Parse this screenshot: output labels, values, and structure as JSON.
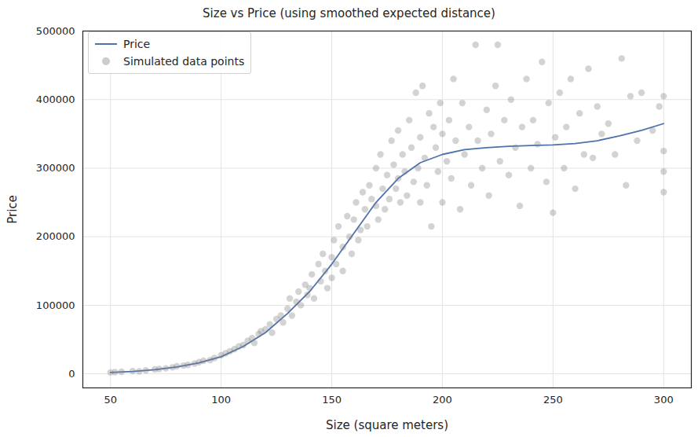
{
  "chart_data": {
    "type": "scatter",
    "title": "Size vs Price (using smoothed expected distance)",
    "x_label": "Size (square meters)",
    "y_label": "Price",
    "xlim": [
      37.5,
      312.5
    ],
    "ylim": [
      -20500,
      500000
    ],
    "xticks": [
      50,
      100,
      150,
      200,
      250,
      300
    ],
    "yticks": [
      0,
      100000,
      200000,
      300000,
      400000,
      500000
    ],
    "grid": true,
    "legend": "upper left",
    "series": [
      {
        "name": "Price",
        "type": "line",
        "color": "#4c72b0",
        "x": [
          50,
          60,
          70,
          80,
          90,
          100,
          110,
          120,
          130,
          140,
          150,
          160,
          170,
          180,
          190,
          200,
          210,
          220,
          230,
          240,
          250,
          260,
          270,
          280,
          290,
          300
        ],
        "values": [
          2000,
          3500,
          6000,
          10000,
          16000,
          25000,
          40000,
          60000,
          88000,
          120000,
          160000,
          205000,
          250000,
          285000,
          308000,
          320000,
          327000,
          330000,
          332000,
          333000,
          334000,
          336000,
          340000,
          347000,
          355000,
          365000
        ]
      },
      {
        "name": "Simulated data points",
        "type": "scatter",
        "color": "#808080",
        "marker": "circle",
        "x": [
          50,
          52,
          55,
          60,
          63,
          66,
          70,
          72,
          75,
          78,
          80,
          83,
          85,
          88,
          90,
          92,
          95,
          97,
          100,
          102,
          104,
          106,
          108,
          110,
          112,
          114,
          115,
          117,
          118,
          120,
          122,
          123,
          125,
          127,
          128,
          130,
          131,
          132,
          134,
          135,
          136,
          138,
          139,
          140,
          141,
          142,
          144,
          145,
          146,
          147,
          148,
          150,
          150,
          151,
          152,
          153,
          155,
          155,
          157,
          158,
          159,
          160,
          161,
          162,
          163,
          164,
          165,
          166,
          167,
          168,
          170,
          170,
          171,
          172,
          173,
          174,
          175,
          176,
          177,
          178,
          179,
          180,
          180,
          181,
          182,
          183,
          184,
          185,
          186,
          187,
          188,
          189,
          190,
          190,
          191,
          192,
          193,
          194,
          195,
          196,
          197,
          198,
          199,
          200,
          200,
          202,
          203,
          204,
          205,
          206,
          208,
          209,
          210,
          212,
          213,
          215,
          216,
          218,
          220,
          221,
          222,
          224,
          225,
          226,
          228,
          230,
          231,
          233,
          235,
          236,
          238,
          240,
          241,
          243,
          245,
          247,
          248,
          250,
          251,
          253,
          255,
          256,
          258,
          260,
          262,
          264,
          266,
          268,
          270,
          272,
          275,
          278,
          281,
          283,
          285,
          288,
          290,
          295,
          298,
          300,
          300,
          300,
          300
        ],
        "values": [
          2000,
          2500,
          3000,
          4000,
          3500,
          5000,
          6500,
          7000,
          8000,
          9500,
          11000,
          12000,
          13000,
          15000,
          17000,
          19000,
          20000,
          23000,
          27000,
          30000,
          33000,
          36000,
          40000,
          42000,
          48000,
          52000,
          45000,
          58000,
          62000,
          65000,
          72000,
          60000,
          80000,
          85000,
          75000,
          95000,
          110000,
          85000,
          105000,
          120000,
          100000,
          130000,
          115000,
          125000,
          145000,
          110000,
          160000,
          135000,
          175000,
          150000,
          125000,
          170000,
          140000,
          195000,
          160000,
          215000,
          185000,
          150000,
          230000,
          200000,
          175000,
          225000,
          250000,
          195000,
          210000,
          265000,
          240000,
          215000,
          275000,
          255000,
          245000,
          300000,
          225000,
          320000,
          270000,
          240000,
          290000,
          255000,
          340000,
          305000,
          270000,
          285000,
          355000,
          250000,
          320000,
          295000,
          260000,
          370000,
          330000,
          280000,
          410000,
          300000,
          345000,
          250000,
          420000,
          315000,
          275000,
          380000,
          215000,
          360000,
          330000,
          295000,
          395000,
          350000,
          250000,
          310000,
          370000,
          285000,
          430000,
          340000,
          240000,
          395000,
          320000,
          360000,
          275000,
          480000,
          340000,
          300000,
          385000,
          260000,
          350000,
          420000,
          480000,
          310000,
          370000,
          290000,
          400000,
          330000,
          245000,
          360000,
          430000,
          300000,
          370000,
          335000,
          455000,
          280000,
          395000,
          235000,
          345000,
          410000,
          300000,
          360000,
          430000,
          270000,
          380000,
          320000,
          445000,
          315000,
          390000,
          350000,
          365000,
          320000,
          460000,
          275000,
          405000,
          340000,
          410000,
          355000,
          390000,
          405000,
          265000,
          325000,
          295000
        ]
      }
    ]
  }
}
